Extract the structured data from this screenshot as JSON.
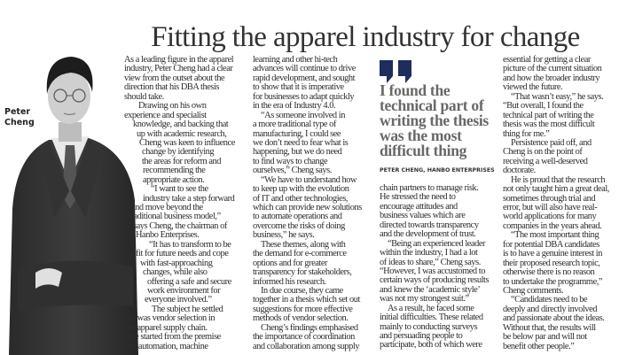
{
  "article": {
    "title": "Fitting the apparel industry for change",
    "photo_caption": [
      "Peter",
      "Cheng"
    ],
    "pull_quote": {
      "lines": [
        "I found the",
        "technical part of",
        "writing the thesis",
        "was the most",
        "difficult thing"
      ],
      "attribution": "PETER CHENG, HANBO ENTERPRISES",
      "quote_mark_color": "#1e2d5c"
    },
    "columns": [
      {
        "paragraphs": [
          {
            "lines": [
              "As a leading figure in the apparel",
              "industry, Peter Cheng had a clear",
              "view from the outset about the",
              "direction that his DBA thesis",
              "should take."
            ]
          },
          {
            "lines": [
              "Drawing on his own",
              "experience and specialist",
              "knowledge, and backing that",
              "up with academic research,",
              "Cheng was keen to influence",
              "change by identifying",
              "the areas for reform and",
              "recommending the",
              "appropriate action."
            ]
          },
          {
            "lines": [
              "“I want to see the",
              "industry take a step forward",
              "and move beyond the",
              "traditional business model,”",
              "says Cheng, the chairman of",
              "Hanbo Enterprises."
            ]
          },
          {
            "lines": [
              "“It has to transform to be",
              "fit for future needs and cope",
              "with fast-approaching",
              "changes, while also",
              "offering a safe and secure",
              "work environment for",
              "everyone involved.”"
            ]
          },
          {
            "lines": [
              "The subject he settled",
              "on was vendor selection in",
              "the apparel supply chain."
            ]
          },
          {
            "lines": [
              "He started from the premise",
              "that automation, machine"
            ]
          }
        ]
      },
      {
        "paragraphs": [
          {
            "lines": [
              "learning and other hi-tech",
              "advances will continue to drive",
              "rapid development, and sought",
              "to show that it is imperative",
              "for businesses to adapt quickly",
              "in the era of Industry 4.0."
            ]
          },
          {
            "lines": [
              "“As someone involved in",
              "a more traditional type of",
              "manufacturing, I could see",
              "we don’t need to fear what is",
              "happening, but we do need",
              "to find ways to change",
              "ourselves,” Cheng says."
            ]
          },
          {
            "lines": [
              "“We have to understand how",
              "to keep up with the evolution",
              "of IT and other technologies,",
              "which can provide new solutions",
              "to automate operations and",
              "overcome the risks of doing",
              "business,” he says."
            ]
          },
          {
            "lines": [
              "These themes, along with",
              "the demand for e-commerce",
              "options and for greater",
              "transparency for stakeholders,",
              "informed his research."
            ]
          },
          {
            "lines": [
              "In due course, they came",
              "together in a thesis which set out",
              "suggestions for more effective",
              "methods of vendor selection."
            ]
          },
          {
            "lines": [
              "Cheng’s findings emphasised",
              "the importance of coordination",
              "and collaboration among supply"
            ]
          }
        ]
      },
      {
        "paragraphs": [
          {
            "lines": [
              "chain partners to manage risk.",
              "He stressed the need to",
              "encourage attitudes and",
              "business values which are",
              "directed towards transparency",
              "and the development of trust."
            ]
          },
          {
            "lines": [
              "“Being an experienced leader",
              "within the industry, I had a lot",
              "of ideas to share,” Cheng says.",
              "“However, I was accustomed to",
              "certain ways of producing results",
              "and knew the ‘academic style’",
              "was not my strongest suit.”"
            ]
          },
          {
            "lines": [
              "As a result, he faced some",
              "initial difficulties. These related",
              "mainly to conducting surveys",
              "and persuading people to",
              "participate, both of which were"
            ]
          }
        ]
      },
      {
        "paragraphs": [
          {
            "lines": [
              "essential for getting a clear",
              "picture of the current situation",
              "and how the broader industry",
              "viewed the future."
            ]
          },
          {
            "lines": [
              "“That wasn’t easy,” he says.",
              "“But overall, I found the",
              "technical part of writing the",
              "thesis was the most difficult",
              "thing for me.”"
            ]
          },
          {
            "lines": [
              "Persistence paid off, and",
              "Cheng is on the point of",
              "receiving a well-deserved",
              "doctorate."
            ]
          },
          {
            "lines": [
              "He is proud that the research",
              "not only taught him a great deal,",
              "sometimes through trial and",
              "error, but will also have real-",
              "world applications for many",
              "companies in the years ahead."
            ]
          },
          {
            "lines": [
              "“The most important thing",
              "for potential DBA candidates",
              "is to have a genuine interest in",
              "their proposed research topic,",
              "otherwise there is no reason",
              "to undertake the programme,”",
              "Cheng comments."
            ]
          },
          {
            "lines": [
              "“Candidates need to be",
              "deeply and directly involved",
              "and passionate about the ideas.",
              "Without that, the results will",
              "be below par and will not",
              "benefit other people.”"
            ]
          }
        ]
      }
    ]
  }
}
